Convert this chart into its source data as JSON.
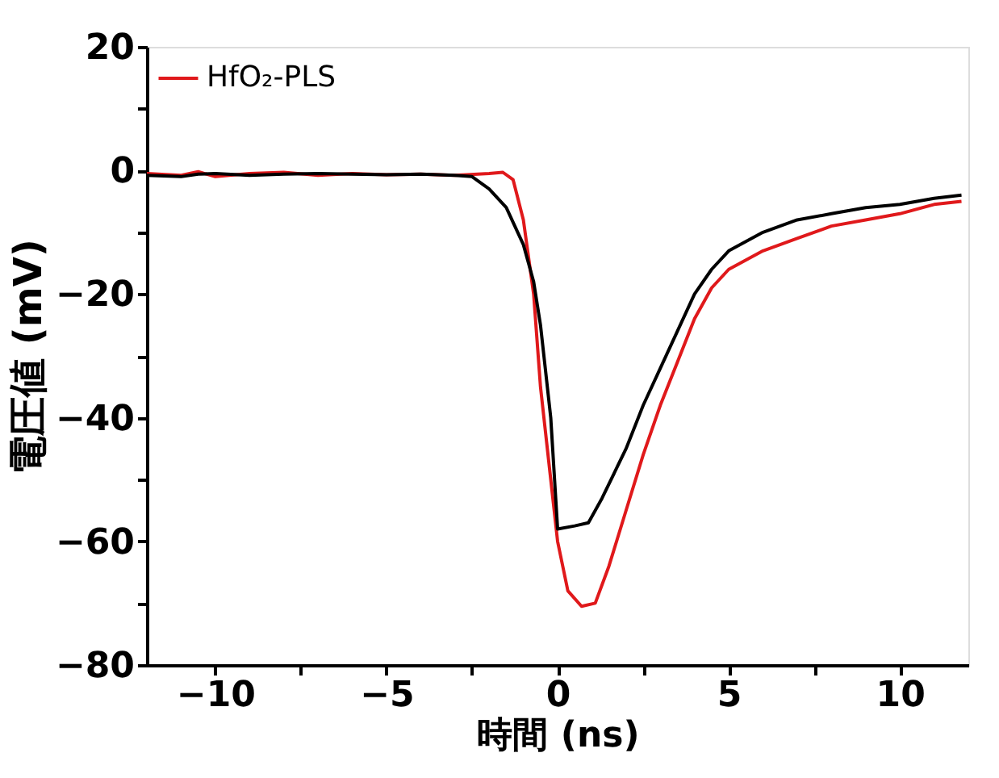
{
  "chart_data": {
    "type": "line",
    "xlabel": "時間 (ns)",
    "ylabel": "電圧値 (mV)",
    "xlim": [
      -12,
      12
    ],
    "ylim": [
      -80,
      20
    ],
    "xticks": [
      -10,
      {
        "value": -7.5,
        "label": null
      },
      -5,
      {
        "value": -2.5,
        "label": null
      },
      0,
      {
        "value": 2.5,
        "label": null
      },
      5,
      {
        "value": 7.5,
        "label": null
      },
      10
    ],
    "yticks": [
      -80,
      {
        "value": -70,
        "label": null
      },
      -60,
      {
        "value": -50,
        "label": null
      },
      -40,
      {
        "value": -30,
        "label": null
      },
      -20,
      {
        "value": -10,
        "label": null
      },
      0,
      {
        "value": 10,
        "label": null
      },
      20
    ],
    "grid": false,
    "legend": "top left",
    "line_style": "solid",
    "series": [
      {
        "name": "HfO₂-PLS",
        "color": "#e0191b",
        "x": [
          -12,
          -11,
          -10.5,
          -10,
          -9,
          -8,
          -7,
          -6,
          -5,
          -4,
          -3,
          -2,
          -1.6,
          -1.3,
          -1,
          -0.7,
          -0.5,
          -0.2,
          0,
          0.3,
          0.7,
          1.1,
          1.5,
          2,
          2.5,
          3,
          3.5,
          4,
          4.5,
          5,
          6,
          7,
          8,
          9,
          10,
          11,
          11.8
        ],
        "values": [
          -0.5,
          -0.8,
          -0.2,
          -1,
          -0.5,
          -0.3,
          -0.8,
          -0.5,
          -0.7,
          -0.6,
          -0.8,
          -0.5,
          -0.3,
          -1.5,
          -8,
          -20,
          -35,
          -50,
          -60,
          -68,
          -70.5,
          -70,
          -64,
          -55,
          -46,
          -38,
          -31,
          -24,
          -19,
          -16,
          -13,
          -11,
          -9,
          -8,
          -7,
          -5.5,
          -5
        ]
      },
      {
        "color": "#000000",
        "x": [
          -12,
          -11,
          -10.5,
          -10,
          -9,
          -8,
          -7,
          -6,
          -5,
          -4,
          -3,
          -2.5,
          -2,
          -1.5,
          -1,
          -0.7,
          -0.5,
          -0.2,
          0,
          0.5,
          0.9,
          1.3,
          2,
          2.5,
          3,
          3.5,
          4,
          4.5,
          5,
          6,
          7,
          8,
          9,
          10,
          11,
          11.8
        ],
        "values": [
          -0.8,
          -1,
          -0.6,
          -0.5,
          -0.8,
          -0.6,
          -0.5,
          -0.6,
          -0.7,
          -0.6,
          -0.8,
          -1,
          -3,
          -6,
          -12,
          -18,
          -25,
          -40,
          -58,
          -57.5,
          -57,
          -53,
          -45,
          -38,
          -32,
          -26,
          -20,
          -16,
          -13,
          -10,
          -8,
          -7,
          -6,
          -5.5,
          -4.5,
          -4
        ]
      }
    ]
  }
}
